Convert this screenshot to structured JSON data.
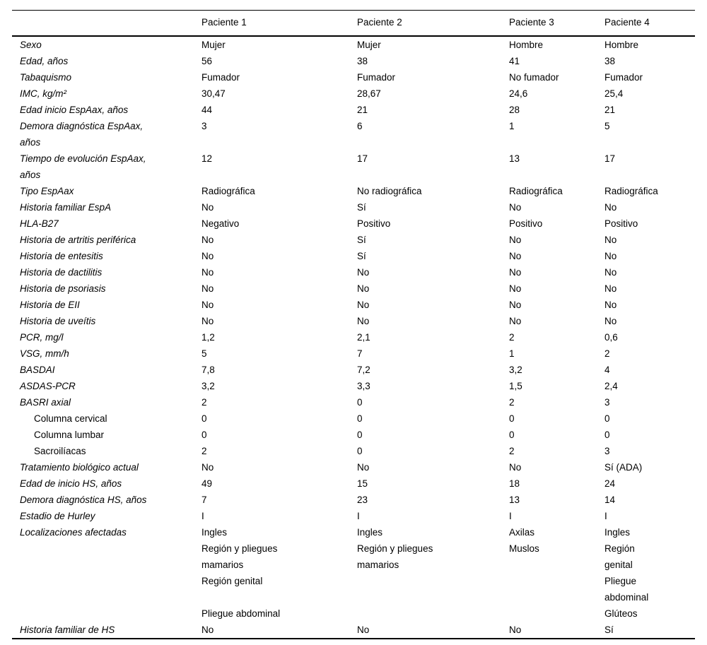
{
  "table": {
    "columns": [
      "Paciente 1",
      "Paciente 2",
      "Paciente 3",
      "Paciente 4"
    ],
    "rows": [
      {
        "label": "Sexo",
        "values": [
          "Mujer",
          "Mujer",
          "Hombre",
          "Hombre"
        ]
      },
      {
        "label": "Edad, años",
        "values": [
          "56",
          "38",
          "41",
          "38"
        ]
      },
      {
        "label": "Tabaquismo",
        "values": [
          "Fumador",
          "Fumador",
          "No fumador",
          "Fumador"
        ]
      },
      {
        "label": "IMC, kg/m²",
        "values": [
          "30,47",
          "28,67",
          "24,6",
          "25,4"
        ]
      },
      {
        "label": "Edad inicio EspAax, años",
        "values": [
          "44",
          "21",
          "28",
          "21"
        ]
      },
      {
        "label": "Demora diagnóstica EspAax,\naños",
        "values": [
          "3",
          "6",
          "1",
          "5"
        ]
      },
      {
        "label": "Tiempo de evolución EspAax,\naños",
        "values": [
          "12",
          "17",
          "13",
          "17"
        ]
      },
      {
        "label": "Tipo EspAax",
        "values": [
          "Radiográfica",
          "No radiográfica",
          "Radiográfica",
          "Radiográfica"
        ]
      },
      {
        "label": "Historia familiar EspA",
        "values": [
          "No",
          "Sí",
          "No",
          "No"
        ]
      },
      {
        "label": "HLA-B27",
        "values": [
          "Negativo",
          "Positivo",
          "Positivo",
          "Positivo"
        ]
      },
      {
        "label": "Historia de artritis periférica",
        "values": [
          "No",
          "Sí",
          "No",
          "No"
        ]
      },
      {
        "label": "Historia de entesitis",
        "values": [
          "No",
          "Sí",
          "No",
          "No"
        ]
      },
      {
        "label": "Historia de dactilitis",
        "values": [
          "No",
          "No",
          "No",
          "No"
        ]
      },
      {
        "label": "Historia de psoriasis",
        "values": [
          "No",
          "No",
          "No",
          "No"
        ]
      },
      {
        "label": "Historia de EII",
        "values": [
          "No",
          "No",
          "No",
          "No"
        ]
      },
      {
        "label": "Historia de uveítis",
        "values": [
          "No",
          "No",
          "No",
          "No"
        ]
      },
      {
        "label": "PCR, mg/l",
        "values": [
          "1,2",
          "2,1",
          "2",
          "0,6"
        ]
      },
      {
        "label": "VSG, mm/h",
        "values": [
          "5",
          "7",
          "1",
          "2"
        ]
      },
      {
        "label": "BASDAI",
        "values": [
          "7,8",
          "7,2",
          "3,2",
          "4"
        ]
      },
      {
        "label": "ASDAS-PCR",
        "values": [
          "3,2",
          "3,3",
          "1,5",
          "2,4"
        ]
      },
      {
        "label": "BASRI axial",
        "values": [
          "2",
          "0",
          "2",
          "3"
        ]
      },
      {
        "label": "Columna cervical",
        "sub": true,
        "values": [
          "0",
          "0",
          "0",
          "0"
        ]
      },
      {
        "label": "Columna lumbar",
        "sub": true,
        "values": [
          "0",
          "0",
          "0",
          "0"
        ]
      },
      {
        "label": "Sacroilíacas",
        "sub": true,
        "values": [
          "2",
          "0",
          "2",
          "3"
        ]
      },
      {
        "label": "Tratamiento biológico actual",
        "values": [
          "No",
          "No",
          "No",
          "Sí (ADA)"
        ]
      },
      {
        "label": "Edad de inicio HS, años",
        "values": [
          "49",
          "15",
          "18",
          "24"
        ]
      },
      {
        "label": "Demora diagnóstica HS, años",
        "values": [
          "7",
          "23",
          "13",
          "14"
        ]
      },
      {
        "label": "Estadio de Hurley",
        "values": [
          "I",
          "I",
          "I",
          "I"
        ]
      },
      {
        "label": "Localizaciones afectadas",
        "values": [
          "Ingles",
          "Ingles",
          "Axilas",
          "Ingles"
        ]
      },
      {
        "label": "",
        "values": [
          "Región y pliegues\nmamarios",
          "Región y pliegues\nmamarios",
          "Muslos",
          "Región\ngenital"
        ]
      },
      {
        "label": "",
        "values": [
          "Región genital",
          "",
          "",
          "Pliegue\nabdominal"
        ]
      },
      {
        "label": "",
        "values": [
          "Pliegue abdominal",
          "",
          "",
          "Glúteos"
        ]
      },
      {
        "label": "Historia familiar de HS",
        "values": [
          "No",
          "No",
          "No",
          "Sí"
        ]
      }
    ]
  }
}
